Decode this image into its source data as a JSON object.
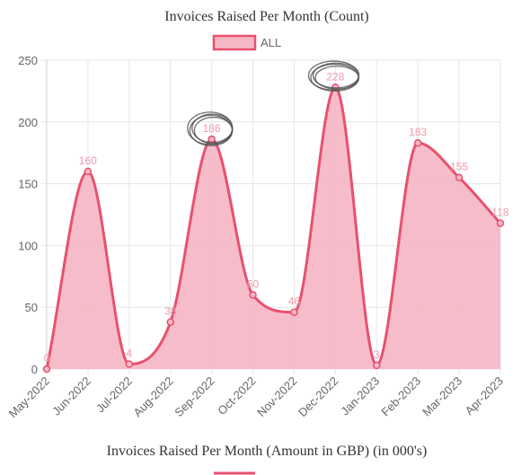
{
  "chart_data": {
    "type": "area",
    "title": "Invoices Raised Per Month (Count)",
    "categories": [
      "May-2022",
      "Jun-2022",
      "Jul-2022",
      "Aug-2022",
      "Sep-2022",
      "Oct-2022",
      "Nov-2022",
      "Dec-2022",
      "Jan-2023",
      "Feb-2023",
      "Mar-2023",
      "Apr-2023"
    ],
    "series": [
      {
        "name": "ALL",
        "values": [
          0,
          160,
          4,
          38,
          186,
          60,
          46,
          228,
          3,
          183,
          155,
          118
        ]
      }
    ],
    "data_labels": [
      "0",
      "160",
      "4",
      "38",
      "186",
      "60",
      "46",
      "228",
      "3",
      "183",
      "155",
      "118"
    ],
    "yticks": [
      "0",
      "50",
      "100",
      "150",
      "200",
      "250"
    ],
    "ylim": [
      0,
      250
    ],
    "legend_position": "top-center",
    "grid": true,
    "colors": {
      "line": "#e8516e",
      "fill": "#f7b8c6",
      "label": "#f19aae",
      "grid": "#e6e6e6",
      "scribble": "#555555"
    },
    "annotations": [
      "hand-drawn circle around 186",
      "hand-drawn circle around 228"
    ]
  },
  "next_chart": {
    "title": "Invoices Raised Per Month (Amount in GBP) (in 000's)"
  }
}
